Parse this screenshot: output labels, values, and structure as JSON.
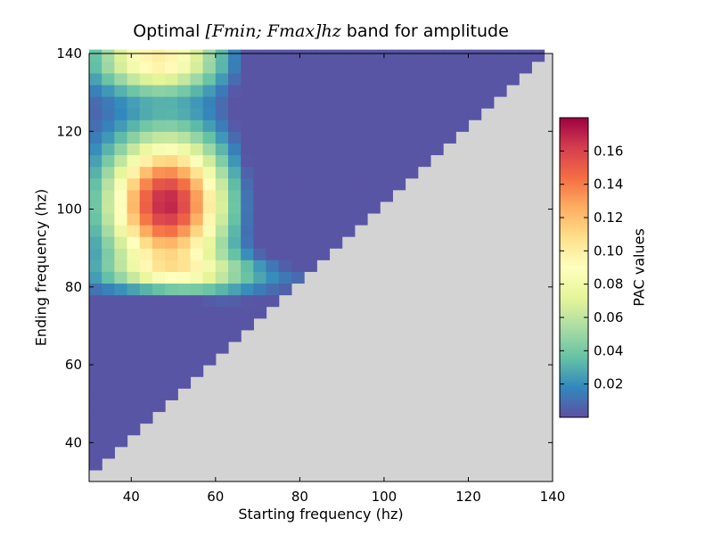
{
  "chart_data": {
    "type": "heatmap",
    "title_prefix": "Optimal ",
    "title_math": "[Fmin; Fmax]hz",
    "title_suffix": " band for amplitude",
    "xlabel": "Starting frequency (hz)",
    "ylabel": "Ending frequency (hz)",
    "colorbar_label": "PAC values",
    "xlim": [
      30,
      140
    ],
    "ylim": [
      30,
      140
    ],
    "x_ticks": [
      40,
      60,
      80,
      100,
      120,
      140
    ],
    "y_ticks": [
      40,
      60,
      80,
      100,
      120,
      140
    ],
    "colorbar_range": [
      0.0,
      0.18
    ],
    "colorbar_ticks": [
      0.02,
      0.04,
      0.06,
      0.08,
      0.1,
      0.12,
      0.14,
      0.16
    ],
    "colorbar_tick_labels": [
      "0.02",
      "0.04",
      "0.06",
      "0.08",
      "0.10",
      "0.12",
      "0.14",
      "0.16"
    ],
    "colormap": "Spectral_r",
    "colormap_stops": [
      "#5e4fa2",
      "#3288bd",
      "#66c2a5",
      "#abdda4",
      "#e6f598",
      "#ffffbf",
      "#fee08b",
      "#fdae61",
      "#f46d43",
      "#d53e4f",
      "#9e0142"
    ],
    "nan_color": "#d3d3d3",
    "cell_size_hz": 3,
    "grid": false,
    "description_of_values": "PAC value for band [start, end]; defined only where end > start (upper-left triangle). Peak ~0.18 near start 45-55 hz, end 95-100 hz; low values near start >75 hz."
  }
}
